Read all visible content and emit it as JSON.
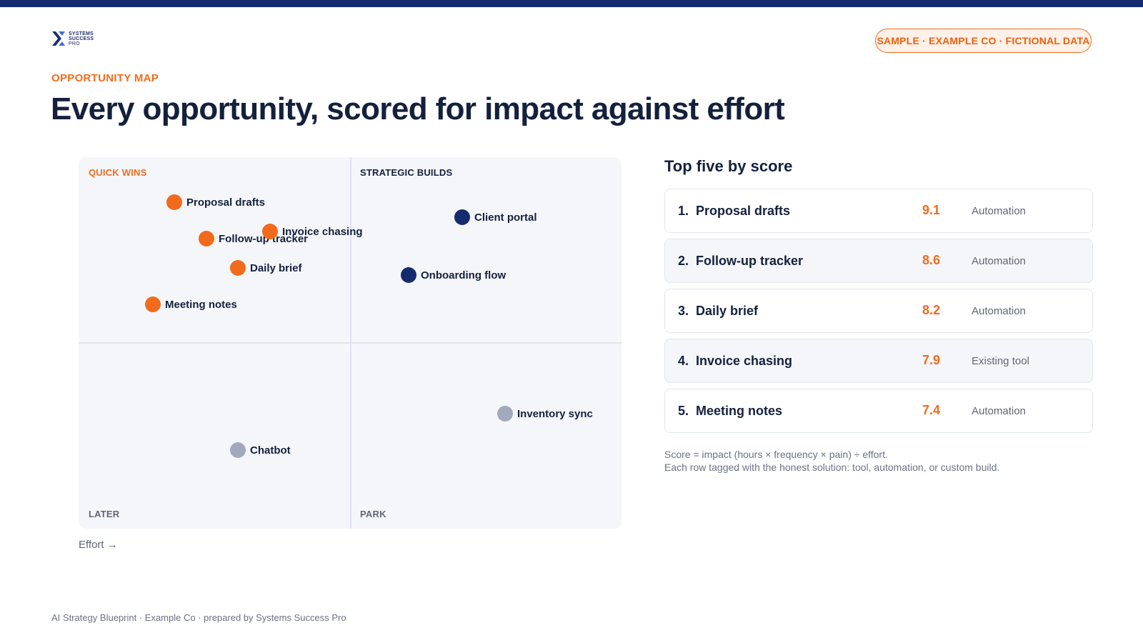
{
  "header": {
    "logo_lines": [
      "SYSTEMS",
      "SUCCESS",
      "PRO"
    ],
    "badge": "SAMPLE · EXAMPLE CO · FICTIONAL DATA",
    "eyebrow": "OPPORTUNITY MAP",
    "title": "Every opportunity, scored for impact against effort"
  },
  "matrix": {
    "quadrants": {
      "top_left": "QUICK WINS",
      "top_right": "STRATEGIC BUILDS",
      "bottom_left": "LATER",
      "bottom_right": "PARK"
    },
    "x_axis_label": "Effort →",
    "colors": {
      "quick_win": "#f26a1b",
      "strategic": "#142b6f",
      "other": "#a2a9bd"
    },
    "points": [
      {
        "label": "Proposal drafts",
        "category": "quick_win"
      },
      {
        "label": "Follow-up tracker",
        "category": "quick_win"
      },
      {
        "label": "Invoice chasing",
        "category": "quick_win"
      },
      {
        "label": "Daily brief",
        "category": "quick_win"
      },
      {
        "label": "Meeting notes",
        "category": "quick_win"
      },
      {
        "label": "Client portal",
        "category": "strategic"
      },
      {
        "label": "Onboarding flow",
        "category": "strategic"
      },
      {
        "label": "Inventory sync",
        "category": "other"
      },
      {
        "label": "Chatbot",
        "category": "other"
      }
    ]
  },
  "ranking": {
    "title": "Top five by score",
    "rows": [
      {
        "rank": "1.",
        "name": "Proposal drafts",
        "score": "9.1",
        "tag": "Automation"
      },
      {
        "rank": "2.",
        "name": "Follow-up tracker",
        "score": "8.6",
        "tag": "Automation"
      },
      {
        "rank": "3.",
        "name": "Daily brief",
        "score": "8.2",
        "tag": "Automation"
      },
      {
        "rank": "4.",
        "name": "Invoice chasing",
        "score": "7.9",
        "tag": "Existing tool"
      },
      {
        "rank": "5.",
        "name": "Meeting notes",
        "score": "7.4",
        "tag": "Automation"
      }
    ],
    "note_lines": [
      "Score = impact (hours × frequency × pain) ÷ effort.",
      "Each row tagged with the honest solution: tool, automation, or custom build."
    ]
  },
  "footer": "AI Strategy Blueprint · Example Co · prepared by Systems Success Pro"
}
